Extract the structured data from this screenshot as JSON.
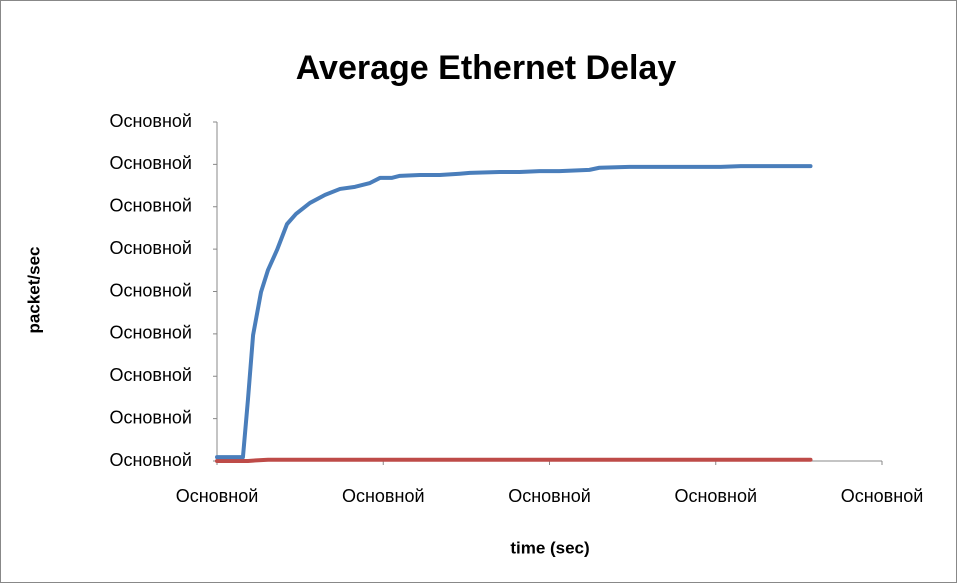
{
  "chart_data": {
    "type": "line",
    "title": "Average Ethernet Delay",
    "x_label": "time (sec)",
    "y_label": "packet/sec",
    "x": [
      0,
      0.156,
      0.186,
      0.217,
      0.265,
      0.307,
      0.361,
      0.421,
      0.475,
      0.559,
      0.65,
      0.74,
      0.83,
      0.92,
      0.98,
      1.05,
      1.1,
      1.22,
      1.34,
      1.46,
      1.52,
      1.7,
      1.82,
      1.94,
      2.06,
      2.24,
      2.3,
      2.48,
      2.66,
      2.85,
      3.03,
      3.15,
      3.39,
      3.57
    ],
    "series": [
      {
        "color": "#4a7ebb",
        "values": [
          0.09,
          0.09,
          1.44,
          2.97,
          3.99,
          4.51,
          4.98,
          5.59,
          5.83,
          6.09,
          6.28,
          6.42,
          6.47,
          6.56,
          6.68,
          6.68,
          6.73,
          6.75,
          6.75,
          6.78,
          6.8,
          6.82,
          6.82,
          6.84,
          6.84,
          6.87,
          6.92,
          6.94,
          6.94,
          6.94,
          6.94,
          6.96,
          6.96,
          6.96
        ]
      },
      {
        "color": "#be4b48",
        "values": [
          0,
          0,
          0,
          0.01,
          0.02,
          0.03,
          0.03,
          0.03,
          0.03,
          0.03,
          0.03,
          0.03,
          0.03,
          0.03,
          0.03,
          0.03,
          0.03,
          0.03,
          0.03,
          0.03,
          0.03,
          0.03,
          0.03,
          0.03,
          0.03,
          0.03,
          0.03,
          0.03,
          0.03,
          0.03,
          0.03,
          0.03,
          0.03,
          0.03
        ]
      }
    ],
    "xlim": [
      0,
      4
    ],
    "xticks": [
      {
        "value": 0,
        "label": "Основной"
      },
      {
        "value": 1,
        "label": "Основной"
      },
      {
        "value": 2,
        "label": "Основной"
      },
      {
        "value": 3,
        "label": "Основной"
      },
      {
        "value": 4,
        "label": "Основной"
      }
    ],
    "ylim": [
      0,
      8
    ],
    "yticks": [
      {
        "value": 0,
        "label": "Основной"
      },
      {
        "value": 1,
        "label": "Основной"
      },
      {
        "value": 2,
        "label": "Основной"
      },
      {
        "value": 3,
        "label": "Основной"
      },
      {
        "value": 4,
        "label": "Основной"
      },
      {
        "value": 5,
        "label": "Основной"
      },
      {
        "value": 6,
        "label": "Основной"
      },
      {
        "value": 7,
        "label": "Основной"
      },
      {
        "value": 8,
        "label": "Основной"
      }
    ]
  }
}
